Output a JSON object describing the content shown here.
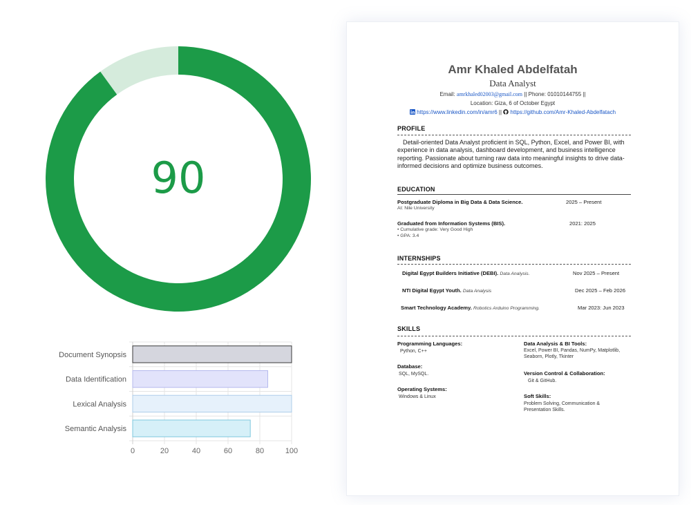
{
  "score": {
    "value": 90,
    "label": "90",
    "colors": {
      "fill": "#1c9b48",
      "track": "#d5ebdc",
      "text": "#1c9b48"
    }
  },
  "chart_data": {
    "type": "bar",
    "orientation": "horizontal",
    "categories": [
      "Document Synopsis",
      "Data Identification",
      "Lexical Analysis",
      "Semantic Analysis"
    ],
    "values": [
      100,
      85,
      100,
      74
    ],
    "xlim": [
      0,
      100
    ],
    "xticks": [
      "0",
      "20",
      "40",
      "60",
      "80",
      "100"
    ],
    "grid": true,
    "bar_colors": [
      {
        "fill": "#d5d6de",
        "stroke": "#3a3a3a"
      },
      {
        "fill": "#e2e3fb",
        "stroke": "#b5b9ee"
      },
      {
        "fill": "#e6f1fb",
        "stroke": "#aecdea"
      },
      {
        "fill": "#d6f0f8",
        "stroke": "#7fc8de"
      }
    ]
  },
  "resume": {
    "name": "Amr Khaled Abdelfatah",
    "role": "Data Analyst",
    "email_prefix": "Email: ",
    "email": "amrkhaled02003@gmail.com",
    "phone": " || Phone: 01010144755 ||",
    "location": "Location: Giza, 6 of October Egypt",
    "linkedin": "https://www.linkedin.com/in/amr6",
    "separator": "||",
    "github": "https://github.com/Amr-Khaled-Abdelfatach",
    "sections": {
      "profile": "PROFILE",
      "education": "EDUCATION",
      "internships": "INTERNSHIPS",
      "skills": "SKILLS"
    },
    "profile_text": "Detail-oriented Data Analyst proficient in SQL, Python, Excel, and Power BI, with experience in data analysis, dashboard development, and business intelligence reporting. Passionate about turning raw data into meaningful insights to drive data-informed decisions and optimize business outcomes.",
    "education": [
      {
        "title": "Postgraduate Diploma in Big Data & Data Science.",
        "sub1": "At: Nile University",
        "sub2": "",
        "date": "2025 – Present"
      },
      {
        "title": "Graduated from Information Systems (BIS).",
        "sub1": "• Cumulative grade: Very Good High",
        "sub2": "• GPA: 3.4",
        "date": "2021: 2025"
      }
    ],
    "internships": [
      {
        "org": "Digital Egypt Builders Initiative (DEBI).",
        "note": "Data Analysis.",
        "date": "Nov 2025 – Present"
      },
      {
        "org": "NTI Digital Egypt Youth.",
        "note": "Data Analysis",
        "date": "Dec 2025 – Feb 2026"
      },
      {
        "org": "Smart Technology Academy.",
        "note": "Robotics Arduino Programming.",
        "date": "Mar 2023: Jun 2023"
      }
    ],
    "skills": {
      "programming_h": "Programming Languages:",
      "programming_v": "Python, C++",
      "database_h": "Database:",
      "database_v": "SQL, MySQL.",
      "os_h": "Operating Systems:",
      "os_v": "Windows & Linux",
      "bi_h": "Data Analysis & BI Tools:",
      "bi_v": "Excel, Power BI, Pandas, NumPy, Matplotlib, Seaborn, Plotly, Tkinter",
      "vc_h": "Version Control & Collaboration:",
      "vc_v": "Git & GitHub.",
      "soft_h": "Soft Skills:",
      "soft_v": "Problem Solving, Communication & Presentation Skills."
    },
    "icons": {
      "linkedin": "linkedin-icon",
      "github": "github-icon"
    }
  }
}
